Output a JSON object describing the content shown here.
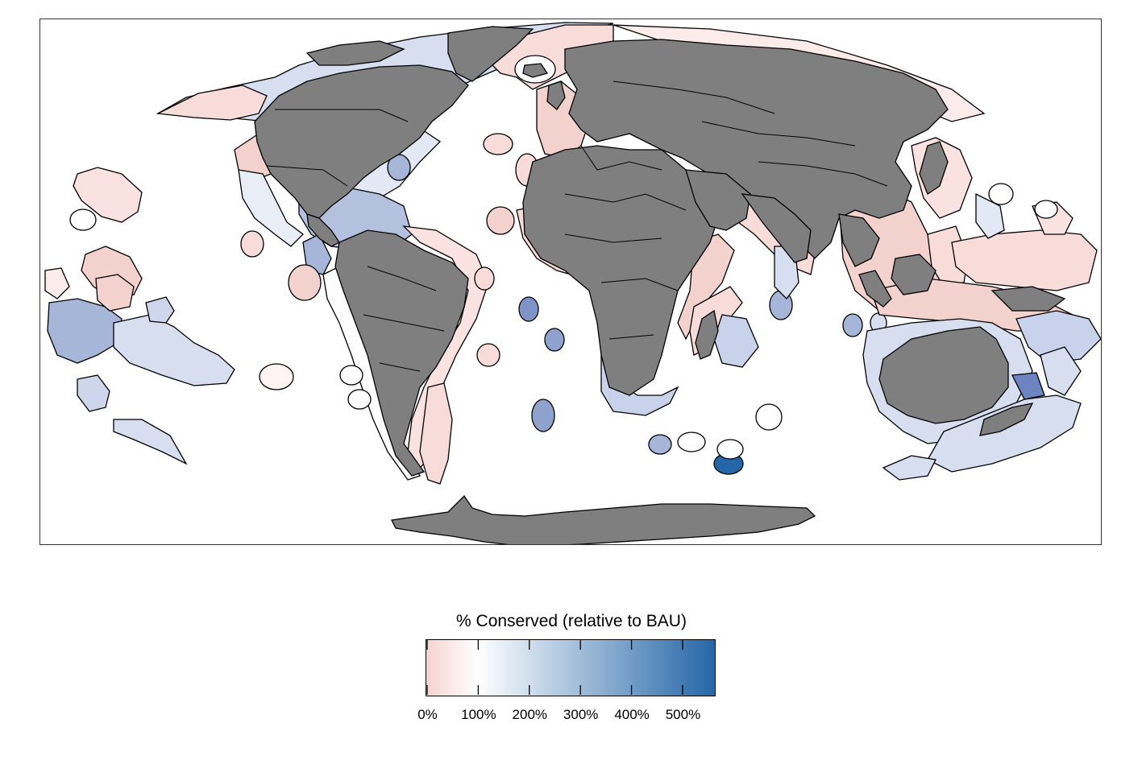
{
  "map": {
    "projection": "world-eez-map",
    "land_color": "#7f7f7f",
    "ocean_color": "#ffffff",
    "border_color": "#000000"
  },
  "legend": {
    "title": "% Conserved (relative to BAU)",
    "ticks": [
      "0%",
      "100%",
      "200%",
      "300%",
      "400%",
      "500%"
    ],
    "tick_values": [
      0,
      100,
      200,
      300,
      400,
      500
    ],
    "scale_max": 560,
    "colors": {
      "low": "#f4d3d0",
      "mid": "#ffffff",
      "high": "#2566a8"
    }
  }
}
